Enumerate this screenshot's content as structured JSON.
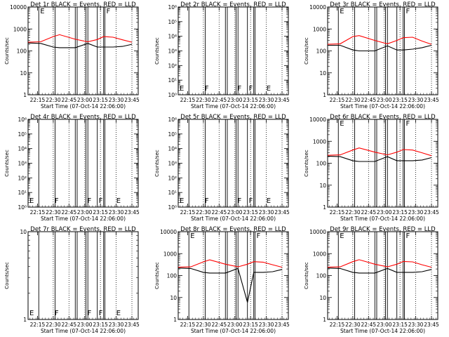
{
  "shared": {
    "ylabel": "Counts/sec",
    "xlabel": "Start Time (07-Oct-14 22:06:00)",
    "time_ticks": [
      "22:15",
      "22:30",
      "22:45",
      "23:00",
      "23:15",
      "23:30",
      "23:45"
    ],
    "series_colors": {
      "events": "#000000",
      "lld": "#ff0000"
    }
  },
  "chart_data": [
    {
      "type": "line",
      "title": "Det 1r BLACK = Events, RED = LLD",
      "ylim": [
        1,
        10000
      ],
      "yscale": "log",
      "ytick_labels": [
        "1",
        "10",
        "100",
        "1000",
        "10000"
      ],
      "markers": [
        {
          "t": 22.27,
          "label": "E"
        },
        {
          "t": 23.32,
          "label": "F"
        }
      ],
      "series": [
        {
          "key": "lld",
          "x": [
            22.1,
            22.3,
            22.5,
            22.6,
            22.85,
            23.05,
            23.2,
            23.3,
            23.45,
            23.6,
            23.75
          ],
          "values": [
            250,
            260,
            450,
            550,
            340,
            260,
            330,
            450,
            420,
            320,
            250
          ]
        },
        {
          "key": "events",
          "x": [
            22.1,
            22.3,
            22.5,
            22.6,
            22.85,
            23.05,
            23.2,
            23.3,
            23.45,
            23.6,
            23.75
          ],
          "values": [
            230,
            220,
            150,
            140,
            140,
            220,
            150,
            150,
            150,
            160,
            200
          ]
        }
      ]
    },
    {
      "type": "line",
      "title": "Det 2r BLACK = Events, RED = LLD",
      "ylim": [
        1,
        1000000
      ],
      "yscale": "log",
      "ytick_labels": [
        "10⁰",
        "10¹",
        "10²",
        "10³",
        "10⁴",
        "10⁵",
        "10⁶"
      ],
      "markers": [
        {
          "t": 22.1,
          "label": "E"
        },
        {
          "t": 22.5,
          "label": "F"
        },
        {
          "t": 23.02,
          "label": "F"
        },
        {
          "t": 23.2,
          "label": "F"
        },
        {
          "t": 23.48,
          "label": "E"
        }
      ],
      "series": []
    },
    {
      "type": "line",
      "title": "Det 3r BLACK = Events, RED = LLD",
      "ylim": [
        1,
        10000
      ],
      "yscale": "log",
      "ytick_labels": [
        "1",
        "10",
        "100",
        "1000",
        "10000"
      ],
      "markers": [
        {
          "t": 22.27,
          "label": "E"
        },
        {
          "t": 23.32,
          "label": "F"
        }
      ],
      "series": [
        {
          "key": "lld",
          "x": [
            22.1,
            22.3,
            22.5,
            22.6,
            22.85,
            23.05,
            23.2,
            23.3,
            23.45,
            23.6,
            23.75
          ],
          "values": [
            200,
            210,
            450,
            500,
            300,
            210,
            300,
            400,
            420,
            280,
            200
          ]
        },
        {
          "key": "events",
          "x": [
            22.1,
            22.3,
            22.5,
            22.6,
            22.85,
            23.05,
            23.2,
            23.3,
            23.45,
            23.6,
            23.75
          ],
          "values": [
            180,
            180,
            110,
            100,
            100,
            170,
            110,
            110,
            120,
            140,
            180
          ]
        }
      ]
    },
    {
      "type": "line",
      "title": "Det 4r BLACK = Events, RED = LLD",
      "ylim": [
        1,
        1000000
      ],
      "yscale": "log",
      "ytick_labels": [
        "10⁰",
        "10¹",
        "10²",
        "10³",
        "10⁴",
        "10⁵",
        "10⁶"
      ],
      "markers": [
        {
          "t": 22.1,
          "label": "E"
        },
        {
          "t": 22.5,
          "label": "F"
        },
        {
          "t": 23.02,
          "label": "F"
        },
        {
          "t": 23.2,
          "label": "F"
        },
        {
          "t": 23.48,
          "label": "E"
        }
      ],
      "series": []
    },
    {
      "type": "line",
      "title": "Det 5r BLACK = Events, RED = LLD",
      "ylim": [
        1,
        1000000
      ],
      "yscale": "log",
      "ytick_labels": [
        "10⁰",
        "10¹",
        "10²",
        "10³",
        "10⁴",
        "10⁵",
        "10⁶"
      ],
      "markers": [
        {
          "t": 22.1,
          "label": "E"
        },
        {
          "t": 22.5,
          "label": "F"
        },
        {
          "t": 23.02,
          "label": "F"
        },
        {
          "t": 23.2,
          "label": "F"
        },
        {
          "t": 23.48,
          "label": "E"
        }
      ],
      "series": []
    },
    {
      "type": "line",
      "title": "Det 6r BLACK = Events, RED = LLD",
      "ylim": [
        1,
        10000
      ],
      "yscale": "log",
      "ytick_labels": [
        "1",
        "10",
        "100",
        "1000",
        "10000"
      ],
      "markers": [
        {
          "t": 22.27,
          "label": "E"
        },
        {
          "t": 23.32,
          "label": "F"
        }
      ],
      "series": [
        {
          "key": "lld",
          "x": [
            22.1,
            22.3,
            22.5,
            22.6,
            22.85,
            23.05,
            23.2,
            23.3,
            23.45,
            23.6,
            23.75
          ],
          "values": [
            230,
            240,
            400,
            500,
            320,
            240,
            320,
            420,
            400,
            300,
            220
          ]
        },
        {
          "key": "events",
          "x": [
            22.1,
            22.3,
            22.5,
            22.6,
            22.85,
            23.05,
            23.2,
            23.3,
            23.45,
            23.6,
            23.75
          ],
          "values": [
            210,
            200,
            130,
            120,
            120,
            200,
            130,
            130,
            130,
            140,
            180
          ]
        }
      ]
    },
    {
      "type": "line",
      "title": "Det 7r BLACK = Events, RED = LLD",
      "ylim": [
        1,
        10
      ],
      "yscale": "log",
      "ytick_labels": [
        "1",
        "10"
      ],
      "markers": [
        {
          "t": 22.1,
          "label": "E"
        },
        {
          "t": 22.5,
          "label": "F"
        },
        {
          "t": 23.02,
          "label": "F"
        },
        {
          "t": 23.2,
          "label": "F"
        },
        {
          "t": 23.48,
          "label": "E"
        }
      ],
      "series": []
    },
    {
      "type": "line",
      "title": "Det 8r BLACK = Events, RED = LLD",
      "ylim": [
        1,
        10000
      ],
      "yscale": "log",
      "ytick_labels": [
        "1",
        "10",
        "100",
        "1000",
        "10000"
      ],
      "markers": [
        {
          "t": 22.27,
          "label": "E"
        },
        {
          "t": 23.32,
          "label": "F"
        }
      ],
      "series": [
        {
          "key": "lld",
          "x": [
            22.1,
            22.3,
            22.5,
            22.6,
            22.85,
            23.05,
            23.2,
            23.3,
            23.45,
            23.6,
            23.75
          ],
          "values": [
            240,
            250,
            420,
            520,
            330,
            250,
            330,
            430,
            410,
            310,
            240
          ]
        },
        {
          "key": "events",
          "x": [
            22.1,
            22.3,
            22.5,
            22.6,
            22.85,
            23.05,
            23.2,
            23.3,
            23.45,
            23.6,
            23.75
          ],
          "values": [
            220,
            210,
            140,
            130,
            130,
            210,
            6,
            140,
            140,
            150,
            190
          ]
        }
      ]
    },
    {
      "type": "line",
      "title": "Det 9r BLACK = Events, RED = LLD",
      "ylim": [
        1,
        10000
      ],
      "yscale": "log",
      "ytick_labels": [
        "1",
        "10",
        "100",
        "1000",
        "10000"
      ],
      "markers": [
        {
          "t": 22.27,
          "label": "E"
        },
        {
          "t": 23.32,
          "label": "F"
        }
      ],
      "series": [
        {
          "key": "lld",
          "x": [
            22.1,
            22.3,
            22.5,
            22.6,
            22.85,
            23.05,
            23.2,
            23.3,
            23.45,
            23.6,
            23.75
          ],
          "values": [
            240,
            250,
            430,
            530,
            330,
            250,
            330,
            440,
            420,
            310,
            240
          ]
        },
        {
          "key": "events",
          "x": [
            22.1,
            22.3,
            22.5,
            22.6,
            22.85,
            23.05,
            23.2,
            23.3,
            23.45,
            23.6,
            23.75
          ],
          "values": [
            220,
            210,
            140,
            130,
            130,
            210,
            140,
            140,
            140,
            150,
            190
          ]
        }
      ]
    }
  ]
}
